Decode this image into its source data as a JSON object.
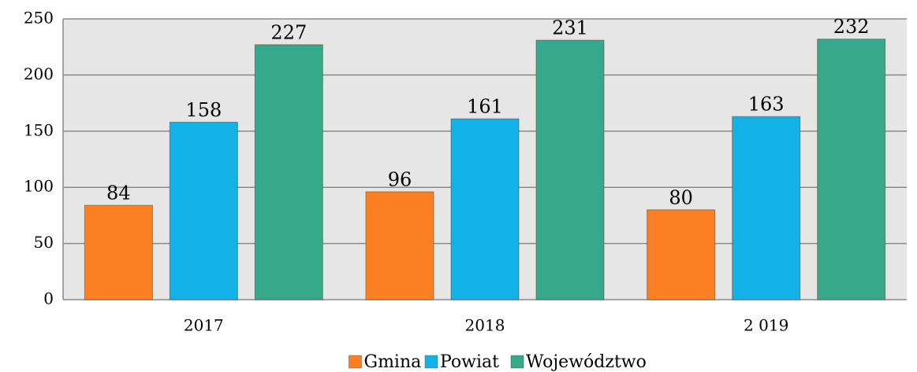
{
  "chart_data": {
    "type": "bar",
    "categories": [
      "2017",
      "2018",
      "2 019"
    ],
    "series": [
      {
        "name": "Gmina",
        "color": "#fd7f23",
        "values": [
          84,
          96,
          80
        ]
      },
      {
        "name": "Powiat",
        "color": "#12b2e8",
        "values": [
          158,
          161,
          163
        ]
      },
      {
        "name": "Województwo",
        "color": "#35a98a",
        "values": [
          227,
          231,
          232
        ]
      }
    ],
    "ylim": [
      0,
      250
    ],
    "yticks": [
      0,
      50,
      100,
      150,
      200,
      250
    ],
    "grid": true,
    "legend": "bottom"
  }
}
